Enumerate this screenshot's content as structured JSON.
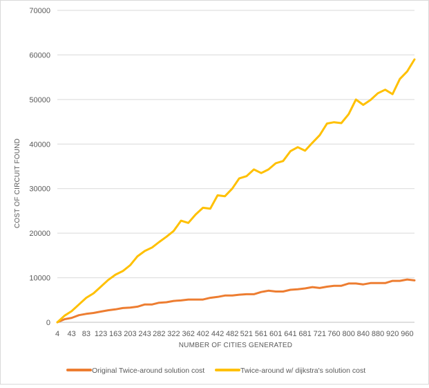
{
  "chart_data": {
    "type": "line",
    "title": "",
    "xlabel": "NUMBER OF CITIES GENERATED",
    "ylabel": "COST OF CIRCUIT FOUND",
    "ylim": [
      0,
      70000
    ],
    "yticks": [
      "0",
      "10000",
      "20000",
      "30000",
      "40000",
      "50000",
      "60000",
      "70000"
    ],
    "x_tick_labels": [
      "4",
      "43",
      "83",
      "123",
      "163",
      "203",
      "243",
      "282",
      "322",
      "362",
      "402",
      "442",
      "482",
      "521",
      "561",
      "601",
      "641",
      "681",
      "721",
      "760",
      "800",
      "840",
      "880",
      "920",
      "960"
    ],
    "grid": "horizontal",
    "legend_position": "bottom",
    "x": [
      4,
      24,
      43,
      63,
      83,
      103,
      123,
      143,
      163,
      183,
      203,
      223,
      243,
      263,
      282,
      302,
      322,
      342,
      362,
      382,
      402,
      422,
      442,
      462,
      482,
      501,
      521,
      541,
      561,
      581,
      601,
      621,
      641,
      661,
      681,
      701,
      721,
      741,
      760,
      780,
      800,
      820,
      840,
      860,
      880,
      900,
      920,
      940,
      960,
      980
    ],
    "series": [
      {
        "name": "Original Twice-around solution cost",
        "color": "#ED7D31",
        "values": [
          0,
          700,
          1000,
          1600,
          1900,
          2100,
          2400,
          2700,
          2900,
          3200,
          3300,
          3500,
          4000,
          4000,
          4400,
          4500,
          4800,
          4900,
          5100,
          5100,
          5100,
          5500,
          5700,
          6000,
          6000,
          6200,
          6300,
          6300,
          6800,
          7100,
          6900,
          6900,
          7300,
          7400,
          7600,
          7900,
          7700,
          8000,
          8200,
          8200,
          8700,
          8700,
          8500,
          8800,
          8800,
          8800,
          9300,
          9300,
          9600,
          9400
        ]
      },
      {
        "name": "Twice-around w/ dijkstra's solution cost",
        "color": "#FFC000",
        "values": [
          0,
          1500,
          2500,
          4000,
          5500,
          6500,
          8000,
          9500,
          10700,
          11500,
          12800,
          14800,
          16000,
          16800,
          18000,
          19200,
          20500,
          22800,
          22300,
          24200,
          25700,
          25500,
          28500,
          28300,
          30000,
          32300,
          32800,
          34300,
          33500,
          34300,
          35700,
          36200,
          38400,
          39300,
          38500,
          40300,
          42000,
          44600,
          44900,
          44700,
          46700,
          50000,
          48800,
          49900,
          51400,
          52200,
          51200,
          54600,
          56300,
          59000
        ]
      }
    ]
  }
}
